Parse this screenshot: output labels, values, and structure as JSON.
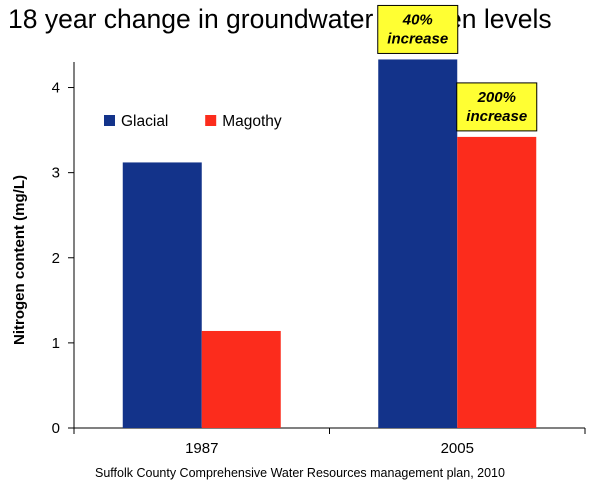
{
  "chart_data": {
    "type": "bar",
    "title": "18 year change in groundwater nitrogen levels",
    "ylabel": "Nitrogen content (mg/L)",
    "xlabel": "",
    "categories": [
      "1987",
      "2005"
    ],
    "series": [
      {
        "name": "Glacial",
        "values": [
          3.12,
          4.33
        ],
        "color": "#13338a"
      },
      {
        "name": "Magothy",
        "values": [
          1.14,
          3.42
        ],
        "color": "#fc2c1c"
      }
    ],
    "ylim": [
      0,
      4.3
    ],
    "yticks": [
      "0",
      "1",
      "2",
      "3",
      "4"
    ],
    "grid": false,
    "legend_position": "top-left",
    "annotations": [
      {
        "series": "Glacial",
        "category": "2005",
        "lines": [
          "40%",
          "increase"
        ],
        "color": "#ffff33"
      },
      {
        "series": "Magothy",
        "category": "2005",
        "lines": [
          "200%",
          "increase"
        ],
        "color": "#ffff33"
      }
    ],
    "source": "Suffolk County Comprehensive Water Resources management plan, 2010"
  }
}
